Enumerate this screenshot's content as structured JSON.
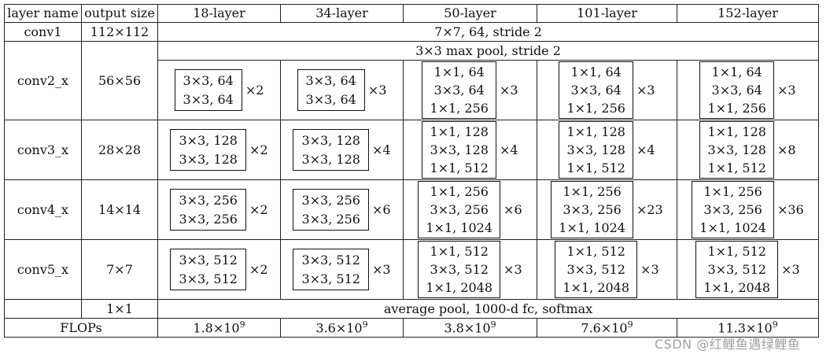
{
  "table": {
    "headers": [
      "layer name",
      "output size",
      "18-layer",
      "34-layer",
      "50-layer",
      "101-layer",
      "152-layer"
    ],
    "conv1": {
      "name": "conv1",
      "size": "112×112",
      "spec": "7×7, 64, stride 2"
    },
    "conv2": {
      "name": "conv2_x",
      "size": "56×56",
      "pool": "3×3 max pool, stride 2",
      "blocks": [
        {
          "lines": [
            "3×3, 64",
            "3×3, 64"
          ],
          "mult": "×2"
        },
        {
          "lines": [
            "3×3, 64",
            "3×3, 64"
          ],
          "mult": "×3"
        },
        {
          "lines": [
            "1×1, 64",
            "3×3, 64",
            "1×1, 256"
          ],
          "mult": "×3"
        },
        {
          "lines": [
            "1×1, 64",
            "3×3, 64",
            "1×1, 256"
          ],
          "mult": "×3"
        },
        {
          "lines": [
            "1×1, 64",
            "3×3, 64",
            "1×1, 256"
          ],
          "mult": "×3"
        }
      ]
    },
    "conv3": {
      "name": "conv3_x",
      "size": "28×28",
      "blocks": [
        {
          "lines": [
            "3×3, 128",
            "3×3, 128"
          ],
          "mult": "×2"
        },
        {
          "lines": [
            "3×3, 128",
            "3×3, 128"
          ],
          "mult": "×4"
        },
        {
          "lines": [
            "1×1, 128",
            "3×3, 128",
            "1×1, 512"
          ],
          "mult": "×4"
        },
        {
          "lines": [
            "1×1, 128",
            "3×3, 128",
            "1×1, 512"
          ],
          "mult": "×4"
        },
        {
          "lines": [
            "1×1, 128",
            "3×3, 128",
            "1×1, 512"
          ],
          "mult": "×8"
        }
      ]
    },
    "conv4": {
      "name": "conv4_x",
      "size": "14×14",
      "blocks": [
        {
          "lines": [
            "3×3, 256",
            "3×3, 256"
          ],
          "mult": "×2"
        },
        {
          "lines": [
            "3×3, 256",
            "3×3, 256"
          ],
          "mult": "×6"
        },
        {
          "lines": [
            "1×1, 256",
            "3×3, 256",
            "1×1, 1024"
          ],
          "mult": "×6"
        },
        {
          "lines": [
            "1×1, 256",
            "3×3, 256",
            "1×1, 1024"
          ],
          "mult": "×23"
        },
        {
          "lines": [
            "1×1, 256",
            "3×3, 256",
            "1×1, 1024"
          ],
          "mult": "×36"
        }
      ]
    },
    "conv5": {
      "name": "conv5_x",
      "size": "7×7",
      "blocks": [
        {
          "lines": [
            "3×3, 512",
            "3×3, 512"
          ],
          "mult": "×2"
        },
        {
          "lines": [
            "3×3, 512",
            "3×3, 512"
          ],
          "mult": "×3"
        },
        {
          "lines": [
            "1×1, 512",
            "3×3, 512",
            "1×1, 2048"
          ],
          "mult": "×3"
        },
        {
          "lines": [
            "1×1, 512",
            "3×3, 512",
            "1×1, 2048"
          ],
          "mult": "×3"
        },
        {
          "lines": [
            "1×1, 512",
            "3×3, 512",
            "1×1, 2048"
          ],
          "mult": "×3"
        }
      ]
    },
    "final": {
      "size": "1×1",
      "spec": "average pool, 1000-d fc, softmax"
    },
    "flops": {
      "label": "FLOPs",
      "values": [
        {
          "mant": "1.8",
          "exp": "9"
        },
        {
          "mant": "3.6",
          "exp": "9"
        },
        {
          "mant": "3.8",
          "exp": "9"
        },
        {
          "mant": "7.6",
          "exp": "9"
        },
        {
          "mant": "11.3",
          "exp": "9"
        }
      ],
      "times": "×10"
    }
  },
  "watermark": "CSDN @红鲤鱼遇绿鲤鱼"
}
